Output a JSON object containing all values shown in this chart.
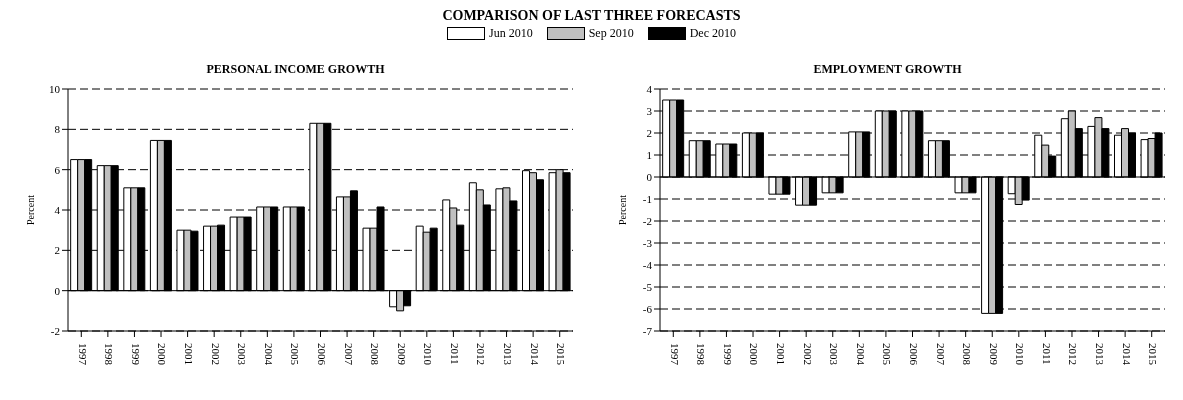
{
  "chart_data": [
    {
      "type": "bar",
      "title": "PERSONAL INCOME GROWTH",
      "ylabel": "Percent",
      "annotations": [
        "COMPARISON OF LAST THREE FORECASTS"
      ],
      "categories": [
        "1997",
        "1998",
        "1999",
        "2000",
        "2001",
        "2002",
        "2003",
        "2004",
        "2005",
        "2006",
        "2007",
        "2008",
        "2009",
        "2010",
        "2011",
        "2012",
        "2013",
        "2014",
        "2015"
      ],
      "series": [
        {
          "name": "Jun 2010",
          "color": "#ffffff",
          "values": [
            6.5,
            6.2,
            5.1,
            7.45,
            3.0,
            3.2,
            3.65,
            4.15,
            4.15,
            8.3,
            4.65,
            3.1,
            -0.8,
            3.2,
            4.5,
            5.35,
            5.05,
            5.95,
            5.85
          ]
        },
        {
          "name": "Sep 2010",
          "color": "#c0c0c0",
          "values": [
            6.5,
            6.2,
            5.1,
            7.45,
            3.0,
            3.2,
            3.65,
            4.15,
            4.15,
            8.3,
            4.65,
            3.1,
            -1.0,
            2.9,
            4.1,
            5.0,
            5.1,
            5.85,
            6.0
          ]
        },
        {
          "name": "Dec 2010",
          "color": "#000000",
          "values": [
            6.5,
            6.2,
            5.1,
            7.45,
            2.95,
            3.25,
            3.65,
            4.15,
            4.15,
            8.3,
            4.95,
            4.15,
            -0.75,
            3.1,
            3.25,
            4.25,
            4.45,
            5.5,
            5.85
          ]
        }
      ],
      "ylim": [
        -2,
        10
      ],
      "yticks": [
        -2,
        0,
        2,
        4,
        6,
        8,
        10
      ],
      "grid": "y",
      "legend": "top"
    },
    {
      "type": "bar",
      "title": "EMPLOYMENT GROWTH",
      "ylabel": "Percent",
      "categories": [
        "1997",
        "1998",
        "1999",
        "2000",
        "2001",
        "2002",
        "2003",
        "2004",
        "2005",
        "2006",
        "2007",
        "2008",
        "2009",
        "2010",
        "2011",
        "2012",
        "2013",
        "2014",
        "2015"
      ],
      "series": [
        {
          "color": "#ffffff",
          "values": [
            3.5,
            1.65,
            1.5,
            2.0,
            -0.78,
            -1.28,
            -0.72,
            2.05,
            3.0,
            3.0,
            1.65,
            -0.72,
            -6.2,
            -0.76,
            1.9,
            2.65,
            2.3,
            1.9,
            1.7
          ]
        },
        {
          "color": "#c0c0c0",
          "values": [
            3.5,
            1.65,
            1.5,
            2.0,
            -0.78,
            -1.28,
            -0.72,
            2.05,
            3.0,
            3.0,
            1.65,
            -0.72,
            -6.2,
            -1.25,
            1.45,
            3.0,
            2.7,
            2.2,
            1.75
          ]
        },
        {
          "color": "#000000",
          "values": [
            3.5,
            1.65,
            1.5,
            2.0,
            -0.78,
            -1.28,
            -0.72,
            2.05,
            3.0,
            3.0,
            1.65,
            -0.72,
            -6.2,
            -1.05,
            0.95,
            2.2,
            2.2,
            2.0,
            2.0
          ]
        }
      ],
      "ylim": [
        -7,
        4
      ],
      "yticks": [
        -7,
        -6,
        -5,
        -4,
        -3,
        -2,
        -1,
        0,
        1,
        2,
        3,
        4
      ],
      "grid": "y"
    }
  ]
}
